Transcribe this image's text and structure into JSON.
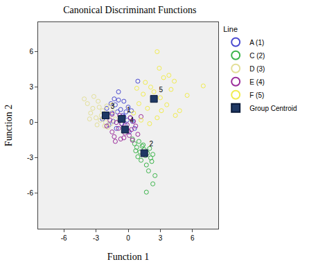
{
  "chart_data": {
    "type": "scatter",
    "title": "Canonical Discriminant Functions",
    "x_label": "Function 1",
    "y_label": "Function 2",
    "legend_title": "Line",
    "legend": "right",
    "grid": false,
    "xlim": [
      -8.4,
      8.4
    ],
    "ylim": [
      -9,
      8.5
    ],
    "xticks": [
      -6,
      -3,
      0,
      3,
      6
    ],
    "yticks": [
      -6,
      -3,
      0,
      3,
      6
    ],
    "series": [
      {
        "name": "A (1)",
        "color": "#4a4ad0",
        "marker": "circle-open",
        "x": [
          -2.4,
          -2.0,
          -1.8,
          -1.5,
          -1.3,
          -1.2,
          -1.0,
          -0.9,
          -0.8,
          -0.7,
          -0.5,
          -0.4,
          -0.3,
          -0.2,
          0.0,
          0.2,
          0.4,
          0.6,
          -1.6,
          -1.1,
          -0.6,
          -0.1,
          0.3,
          0.9,
          -0.9,
          -1.4,
          0.1,
          -0.4
        ],
        "y": [
          0.3,
          1.2,
          -0.2,
          0.8,
          2.0,
          1.5,
          0.9,
          2.6,
          0.2,
          1.1,
          0.6,
          1.8,
          -0.2,
          0.9,
          1.3,
          0.4,
          0.1,
          -0.5,
          1.6,
          -0.5,
          -0.1,
          0.2,
          1.0,
          3.5,
          1.9,
          0.1,
          -0.8,
          0.5
        ]
      },
      {
        "name": "C (2)",
        "color": "#3cb44b",
        "marker": "circle-open",
        "x": [
          0.4,
          0.6,
          0.8,
          1.0,
          1.1,
          1.3,
          1.5,
          1.6,
          1.8,
          2.0,
          2.1,
          2.3,
          1.2,
          0.9,
          1.7,
          1.4,
          2.2,
          1.9,
          2.5,
          1.7,
          2.3,
          0.7
        ],
        "y": [
          -1.4,
          -1.8,
          -2.1,
          -1.6,
          -2.5,
          -2.0,
          -2.3,
          -2.8,
          -2.6,
          -2.2,
          -3.0,
          -2.7,
          -3.2,
          -2.9,
          -3.6,
          -1.9,
          -3.3,
          -4.1,
          -4.5,
          -5.9,
          -5.2,
          -2.4
        ]
      },
      {
        "name": "D (3)",
        "color": "#e3df98",
        "marker": "circle-open",
        "x": [
          -4.1,
          -3.8,
          -3.5,
          -3.3,
          -3.0,
          -2.8,
          -2.6,
          -2.4,
          -2.2,
          -2.0,
          -1.8,
          -1.6,
          -1.4,
          -1.2,
          -3.6,
          -2.9,
          -2.5,
          -1.9,
          -1.5,
          -3.2,
          -2.7,
          -2.1
        ],
        "y": [
          2.0,
          1.6,
          0.8,
          1.2,
          0.4,
          1.8,
          0.2,
          1.0,
          -0.3,
          1.4,
          0.5,
          -0.1,
          0.9,
          0.3,
          0.3,
          -0.2,
          0.6,
          -0.4,
          1.5,
          2.2,
          1.3,
          0.0
        ]
      },
      {
        "name": "E (4)",
        "color": "#9b2d9b",
        "marker": "circle-open",
        "x": [
          -2.0,
          -1.7,
          -1.5,
          -1.3,
          -1.1,
          -0.9,
          -0.7,
          -0.5,
          -0.3,
          -0.1,
          0.1,
          0.3,
          0.5,
          0.7,
          0.9,
          1.2,
          -1.2,
          -0.8,
          -0.4,
          0.0,
          0.4,
          -0.6,
          0.2,
          -1.5
        ],
        "y": [
          -0.3,
          0.2,
          -0.8,
          -1.2,
          0.0,
          -0.5,
          -1.4,
          0.3,
          -0.9,
          -0.2,
          -1.1,
          -0.6,
          0.1,
          -0.3,
          -1.0,
          0.5,
          -1.6,
          0.6,
          -1.3,
          -0.7,
          -1.5,
          -0.1,
          0.4,
          0.7
        ]
      },
      {
        "name": "F (5)",
        "color": "#f0ec50",
        "marker": "circle-open",
        "x": [
          0.5,
          1.0,
          1.4,
          1.8,
          2.1,
          2.4,
          2.7,
          3.0,
          3.3,
          3.6,
          4.0,
          4.3,
          4.8,
          5.5,
          7.0,
          2.7,
          1.2,
          0.8,
          3.8,
          2.0,
          3.1,
          1.6,
          4.4,
          2.9
        ],
        "y": [
          0.8,
          1.6,
          2.4,
          1.2,
          3.0,
          2.6,
          0.4,
          2.1,
          3.8,
          1.5,
          2.8,
          3.5,
          1.0,
          2.3,
          3.1,
          6.0,
          0.2,
          2.9,
          4.0,
          -0.1,
          1.0,
          3.4,
          0.6,
          4.6
        ]
      },
      {
        "name": "Group Centroid",
        "color": "#1f3864",
        "marker": "square",
        "x": [
          -0.6,
          1.5,
          -2.1,
          -0.3,
          2.4
        ],
        "y": [
          0.3,
          -2.6,
          0.6,
          -0.6,
          2.0
        ],
        "labels": [
          "1",
          "2",
          "3",
          "4",
          "5"
        ]
      }
    ]
  }
}
